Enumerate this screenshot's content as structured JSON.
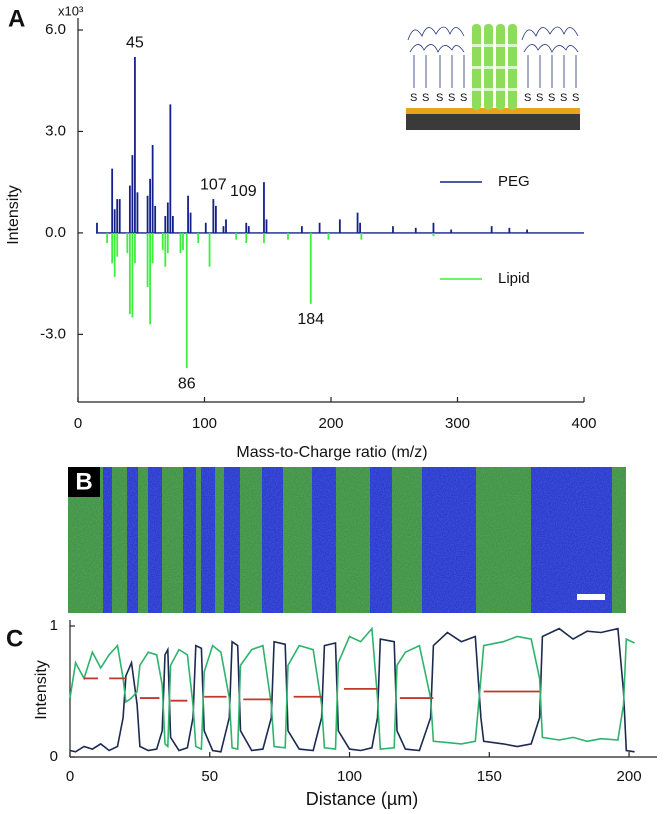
{
  "chart_data": [
    {
      "type": "spectrum",
      "panel": "A",
      "y_unit_label": "x10³",
      "x_label": "Mass-to-Charge ratio (m/z)",
      "y_label": "Intensity",
      "legend": "right",
      "xlim": [
        0,
        400
      ],
      "xticks": [
        0,
        100,
        200,
        300,
        400
      ],
      "ylim": [
        -5,
        6
      ],
      "yticks": [
        {
          "value": 6,
          "label": "6.0"
        },
        {
          "value": 3,
          "label": "3.0"
        },
        {
          "value": 0,
          "label": "0.0"
        },
        {
          "value": -3,
          "label": "-3.0"
        }
      ],
      "annotations": [
        "45",
        "107",
        "109",
        "86",
        "184"
      ],
      "inset_labels": [
        "S",
        "S",
        "S",
        "S",
        "S",
        "S",
        "S",
        "S",
        "S",
        "S"
      ],
      "series": [
        {
          "name": "PEG",
          "color": "#14208c",
          "x": [
            15,
            27,
            29,
            31,
            33,
            41,
            43,
            45,
            47,
            55,
            57,
            59,
            61,
            69,
            71,
            73,
            75,
            87,
            89,
            101,
            107,
            109,
            115,
            117,
            133,
            135,
            147,
            149,
            177,
            191,
            207,
            221,
            223,
            249,
            267,
            281,
            295,
            327,
            341,
            355
          ],
          "values": [
            0.3,
            1.9,
            0.7,
            1.0,
            1.0,
            1.4,
            2.3,
            5.2,
            1.2,
            1.1,
            1.6,
            2.6,
            0.8,
            0.5,
            0.9,
            3.8,
            0.5,
            1.1,
            0.6,
            0.3,
            1.0,
            0.8,
            0.2,
            0.4,
            0.3,
            0.2,
            1.5,
            0.4,
            0.2,
            0.3,
            0.4,
            0.6,
            0.3,
            0.2,
            0.15,
            0.3,
            0.1,
            0.2,
            0.15,
            0.1
          ]
        },
        {
          "name": "Lipid",
          "color": "#3cef3c",
          "x": [
            23,
            27,
            29,
            31,
            39,
            41,
            43,
            45,
            55,
            57,
            59,
            67,
            69,
            71,
            81,
            83,
            86,
            95,
            104,
            125,
            133,
            147,
            166,
            184,
            198,
            224,
            281
          ],
          "values": [
            -0.3,
            -0.9,
            -1.3,
            -0.7,
            -0.6,
            -2.4,
            -2.5,
            -0.9,
            -1.6,
            -2.7,
            -0.9,
            -0.5,
            -1.0,
            -0.6,
            -0.6,
            -0.5,
            -4.0,
            -0.3,
            -1.0,
            -0.2,
            -0.3,
            -0.3,
            -0.2,
            -2.1,
            -0.2,
            -0.2,
            -0.1
          ]
        }
      ]
    },
    {
      "type": "line",
      "panel": "C",
      "x_label": "Distance (µm)",
      "y_label": "Intensity",
      "xlim": [
        0,
        210
      ],
      "xticks": [
        0,
        50,
        100,
        150,
        200
      ],
      "ylim": [
        0,
        1
      ],
      "yticks": [
        0,
        1
      ],
      "x": [
        0,
        2,
        5,
        8,
        11,
        14,
        17,
        19,
        20,
        22,
        24,
        25,
        28,
        31,
        33,
        34,
        35,
        36,
        39,
        42,
        44,
        45,
        47,
        48,
        51,
        54,
        57,
        58,
        60,
        61,
        65,
        69,
        72,
        73,
        77,
        78,
        82,
        87,
        90,
        91,
        95,
        96,
        100,
        104,
        108,
        110,
        111,
        116,
        117,
        120,
        125,
        129,
        130,
        135,
        140,
        145,
        147,
        148,
        155,
        160,
        165,
        168,
        169,
        175,
        180,
        185,
        190,
        196,
        198,
        199,
        202
      ],
      "series": [
        {
          "color": "#1b2a4e",
          "values": [
            0.05,
            0.04,
            0.08,
            0.06,
            0.1,
            0.05,
            0.08,
            0.3,
            0.62,
            0.72,
            0.4,
            0.08,
            0.05,
            0.06,
            0.2,
            0.78,
            0.82,
            0.15,
            0.05,
            0.07,
            0.3,
            0.85,
            0.83,
            0.2,
            0.05,
            0.04,
            0.3,
            0.88,
            0.85,
            0.2,
            0.05,
            0.06,
            0.3,
            0.88,
            0.86,
            0.2,
            0.06,
            0.05,
            0.3,
            0.85,
            0.87,
            0.2,
            0.06,
            0.05,
            0.07,
            0.3,
            0.9,
            0.88,
            0.2,
            0.06,
            0.05,
            0.3,
            0.85,
            0.95,
            0.88,
            0.92,
            0.3,
            0.12,
            0.1,
            0.08,
            0.1,
            0.3,
            0.92,
            0.98,
            0.9,
            0.96,
            0.95,
            0.98,
            0.5,
            0.05,
            0.04
          ]
        },
        {
          "color": "#2fb36c",
          "values": [
            0.45,
            0.72,
            0.6,
            0.8,
            0.68,
            0.78,
            0.85,
            0.6,
            0.42,
            0.45,
            0.5,
            0.7,
            0.8,
            0.78,
            0.55,
            0.1,
            0.08,
            0.7,
            0.82,
            0.78,
            0.4,
            0.08,
            0.06,
            0.65,
            0.85,
            0.8,
            0.45,
            0.07,
            0.06,
            0.7,
            0.82,
            0.85,
            0.4,
            0.08,
            0.07,
            0.7,
            0.85,
            0.82,
            0.4,
            0.07,
            0.06,
            0.72,
            0.92,
            0.88,
            0.98,
            0.45,
            0.06,
            0.07,
            0.7,
            0.8,
            0.85,
            0.45,
            0.12,
            0.11,
            0.1,
            0.12,
            0.6,
            0.85,
            0.88,
            0.92,
            0.9,
            0.6,
            0.15,
            0.13,
            0.15,
            0.12,
            0.14,
            0.13,
            0.4,
            0.9,
            0.87
          ]
        }
      ],
      "segments_color": "#c0392b",
      "segments": [
        {
          "x": [
            5,
            10
          ],
          "y": 0.6
        },
        {
          "x": [
            14,
            20
          ],
          "y": 0.6
        },
        {
          "x": [
            25,
            32
          ],
          "y": 0.45
        },
        {
          "x": [
            36,
            42
          ],
          "y": 0.43
        },
        {
          "x": [
            48,
            56
          ],
          "y": 0.46
        },
        {
          "x": [
            62,
            72
          ],
          "y": 0.44
        },
        {
          "x": [
            80,
            90
          ],
          "y": 0.46
        },
        {
          "x": [
            98,
            110
          ],
          "y": 0.52
        },
        {
          "x": [
            118,
            130
          ],
          "y": 0.45
        },
        {
          "x": [
            148,
            168
          ],
          "y": 0.5
        }
      ]
    }
  ],
  "image": {
    "panel": "B"
  }
}
